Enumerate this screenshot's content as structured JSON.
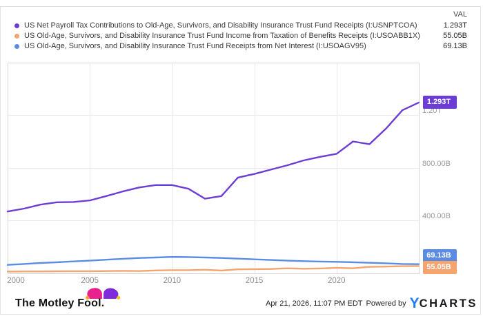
{
  "legend": {
    "val_header": "VAL",
    "items": [
      {
        "label": "US Net Payroll Tax Contributions to Old-Age, Survivors, and Disability Insurance Trust Fund Receipts (I:USNPTCOA)",
        "value": "1.293T",
        "color": "#6c3dd4"
      },
      {
        "label": "US Old-Age, Survivors, and Disability Insurance Trust Fund Income from Taxation of Benefits Receipts (I:USOABB1X)",
        "value": "55.05B",
        "color": "#f6a46e"
      },
      {
        "label": "US Old-Age, Survivors, and Disability Insurance Trust Fund Receipts from Net Interest (I:USOAGV95)",
        "value": "69.13B",
        "color": "#5b8ce4"
      }
    ]
  },
  "chart_data": {
    "type": "line",
    "title": "",
    "xlabel": "",
    "ylabel": "",
    "grid": true,
    "legend_position": "top",
    "xlim": [
      2000,
      2025
    ],
    "ylim": [
      0,
      1595
    ],
    "xticks": [
      2000,
      2005,
      2010,
      2015,
      2020
    ],
    "yticks": [
      {
        "value": 400,
        "label": "400.00B"
      },
      {
        "value": 800,
        "label": "800.00B"
      },
      {
        "value": 1200,
        "label": "1.20T"
      }
    ],
    "x": [
      2000,
      2001,
      2002,
      2003,
      2004,
      2005,
      2006,
      2007,
      2008,
      2009,
      2010,
      2011,
      2012,
      2013,
      2014,
      2015,
      2016,
      2017,
      2018,
      2019,
      2020,
      2021,
      2022,
      2023,
      2024,
      2025
    ],
    "series": [
      {
        "name": "US Net Payroll Tax Contributions to Old-Age, Survivors, and Disability Insurance Trust Fund Receipts",
        "ticker": "I:USNPTCOA",
        "color": "#6c3dd4",
        "end_label": "1.293T",
        "values": [
          468,
          490,
          520,
          538,
          540,
          552,
          585,
          620,
          650,
          668,
          668,
          640,
          565,
          585,
          725,
          752,
          785,
          818,
          855,
          882,
          905,
          998,
          978,
          1095,
          1235,
          1293
        ]
      },
      {
        "name": "US Old-Age, Survivors, and Disability Insurance Trust Fund Income from Taxation of Benefits Receipts",
        "ticker": "I:USOABB1X",
        "color": "#f6a46e",
        "end_label": "55.05B",
        "values": [
          13,
          14,
          14,
          15,
          16,
          16,
          17,
          19,
          17,
          22,
          24,
          24,
          27,
          21,
          30,
          32,
          33,
          38,
          35,
          37,
          41,
          38,
          49,
          51,
          54,
          55.05
        ]
      },
      {
        "name": "US Old-Age, Survivors, and Disability Insurance Trust Fund Receipts from Net Interest",
        "ticker": "I:USOAGV95",
        "color": "#5b8ce4",
        "end_label": "69.13B",
        "values": [
          64,
          71,
          78,
          84,
          90,
          96,
          103,
          110,
          116,
          120,
          124,
          123,
          120,
          116,
          111,
          106,
          101,
          96,
          92,
          89,
          87,
          84,
          80,
          76,
          71,
          69.13
        ]
      }
    ]
  },
  "footer": {
    "brand": "The Motley Fool.",
    "timestamp": "Apr 21, 2026, 11:07 PM EDT",
    "powered_by_label": "Powered by",
    "logo": {
      "y": "Y",
      "charts": "CHARTS"
    }
  }
}
